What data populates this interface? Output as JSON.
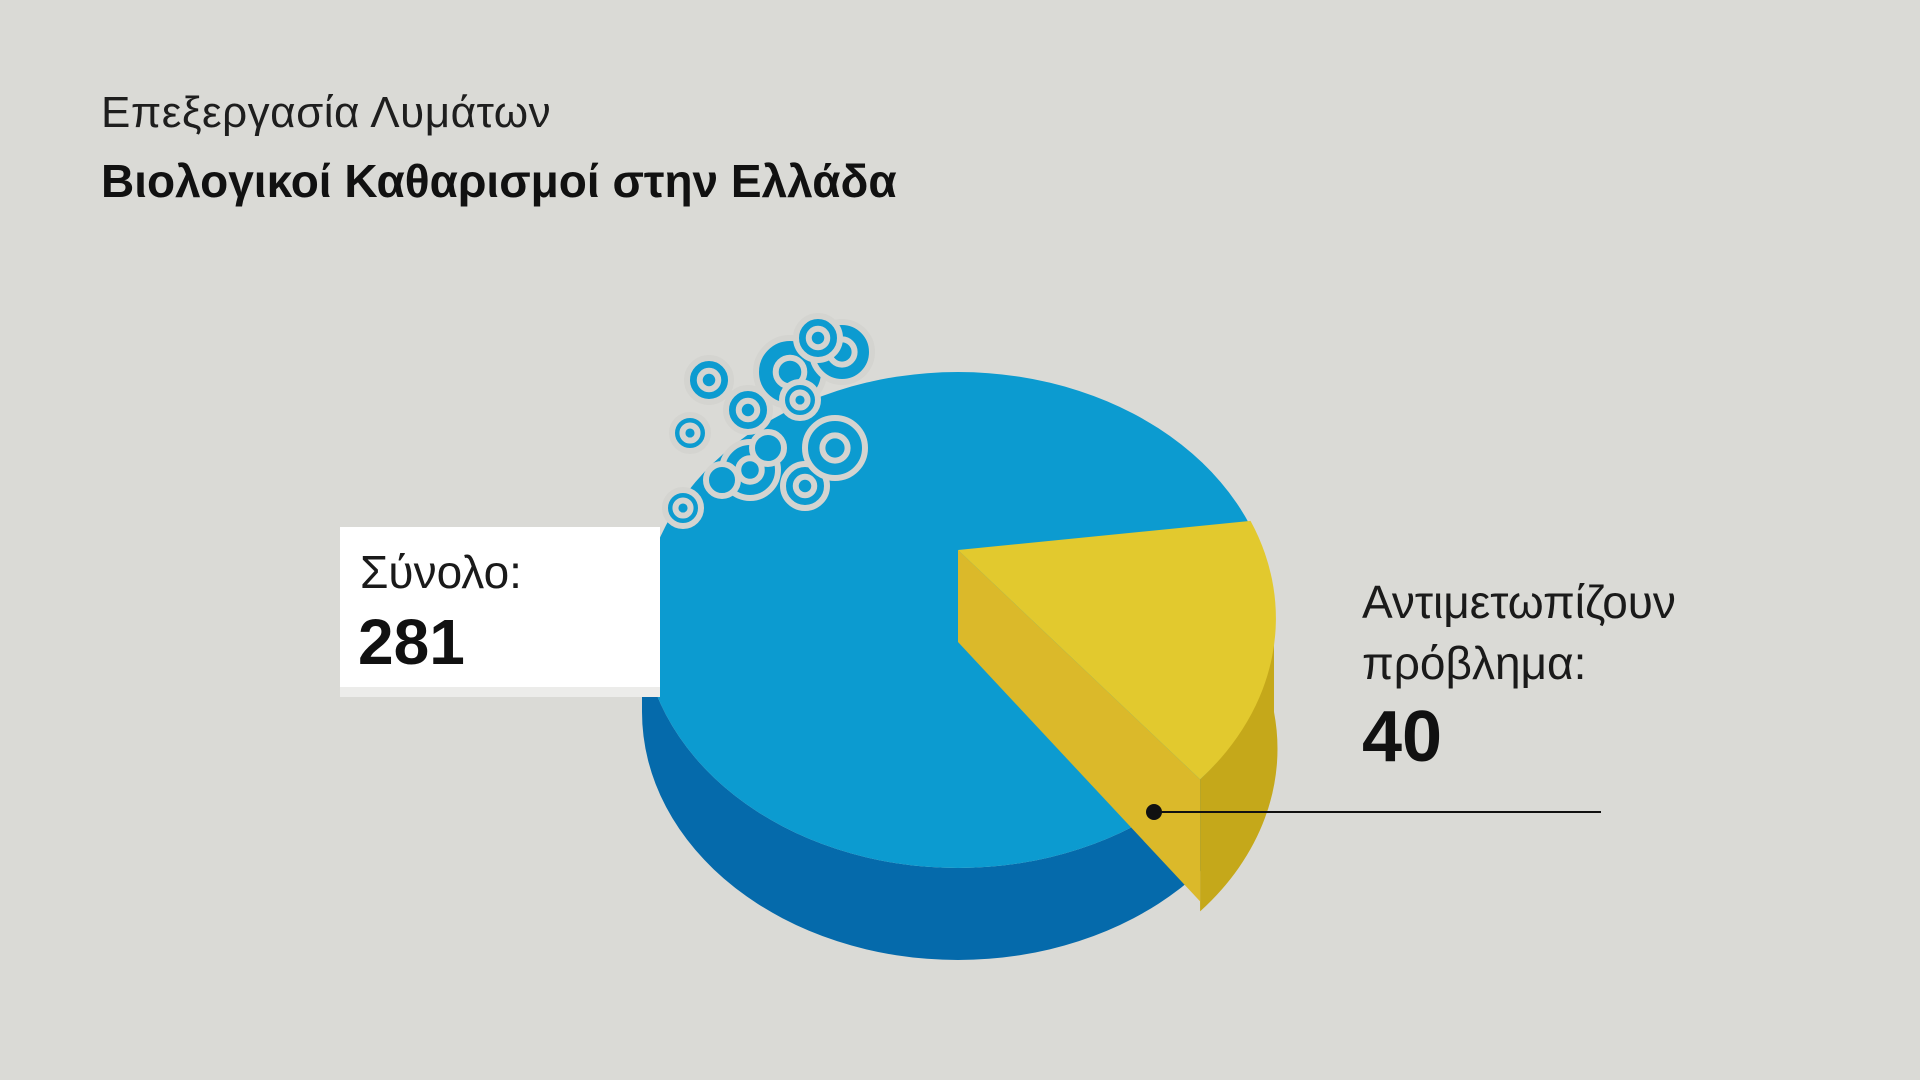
{
  "header": {
    "subtitle": "Επεξεργασία Λυμάτων",
    "title": "Βιολογικοί Καθαρισμοί στην Ελλάδα"
  },
  "colors": {
    "background": "#dadad6",
    "total_top": "#0c9bd0",
    "total_side": "#056aab",
    "problem_top": "#e2c92e",
    "problem_side": "#c5a81a",
    "problem_inner": "#dbb92a",
    "bubbles": "#0c9bd0",
    "bubble_outline": "#d4d4d0"
  },
  "icons": {
    "bubbles": "bubbles-icon"
  },
  "chart_data": {
    "type": "pie",
    "style": "3d",
    "total": {
      "label": "Σύνολο:",
      "value": 281
    },
    "slices": [
      {
        "label": "Αντιμετωπίζουν πρόβλημα:",
        "value": 40,
        "color": "#e2c92e"
      },
      {
        "value": 241,
        "color": "#0c9bd0"
      }
    ]
  }
}
